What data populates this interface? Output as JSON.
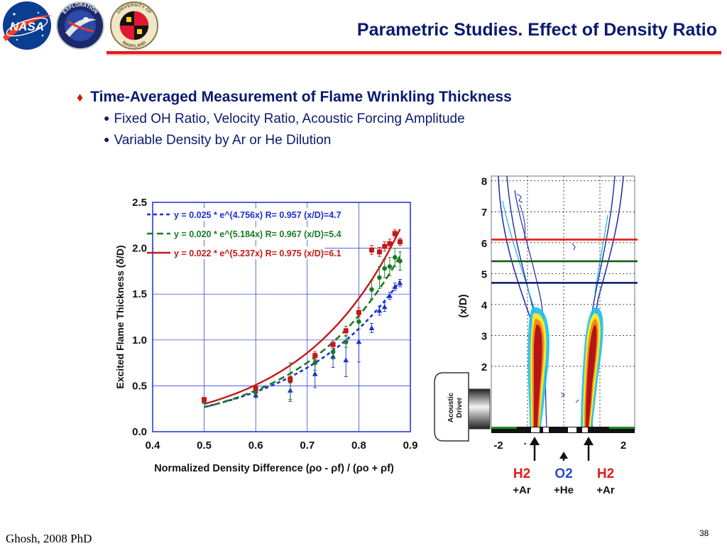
{
  "slide": {
    "title": "Parametric Studies. Effect of Density Ratio",
    "bullet_main": "Time-Averaged Measurement of Flame Wrinkling Thickness",
    "bullet_subs": [
      "Fixed OH Ratio, Velocity Ratio, Acoustic Forcing Amplitude",
      "Variable Density by Ar or He Dilution"
    ],
    "footer_source": "Ghosh, 2008 PhD",
    "page_number": "38",
    "colors": {
      "title": "#0a1a6e",
      "rule": "#e11b1b",
      "bullet_marker": "#d01717"
    }
  },
  "logos": {
    "nasa": "NASA",
    "exploration": "EXPLORATION",
    "umd_top": "UNIVERSITY OF",
    "umd_bottom": "MARYLAND"
  },
  "chart_data": {
    "type": "scatter",
    "xlabel": "Normalized Density Difference (ρo - ρf) / (ρo + ρf)",
    "ylabel": "Excited Flame Thickness (δ/D)",
    "xlim": [
      0.4,
      0.9
    ],
    "ylim": [
      0.0,
      2.5
    ],
    "x_ticks": [
      "0.4",
      "0.5",
      "0.6",
      "0.7",
      "0.8",
      "0.9"
    ],
    "y_ticks": [
      "0.0",
      "0.5",
      "1.0",
      "1.5",
      "2.0",
      "2.5"
    ],
    "grid": true,
    "legend_position": "top-left",
    "series": [
      {
        "legend": "y = 0.025 * e^(4.756x) R= 0.957 (x/D)=4.7",
        "color": "#1c2fd0",
        "marker": "triangle",
        "line": "dashed",
        "fit": {
          "a": 0.025,
          "b": 4.756
        },
        "points": [
          {
            "x": 0.5,
            "y": 0.33,
            "err": 0.0
          },
          {
            "x": 0.6,
            "y": 0.4,
            "err": 0.03
          },
          {
            "x": 0.667,
            "y": 0.45,
            "err": 0.12
          },
          {
            "x": 0.715,
            "y": 0.63,
            "err": 0.15
          },
          {
            "x": 0.75,
            "y": 0.82,
            "err": 0.12
          },
          {
            "x": 0.775,
            "y": 0.78,
            "err": 0.18
          },
          {
            "x": 0.8,
            "y": 0.98,
            "err": 0.22
          },
          {
            "x": 0.825,
            "y": 1.13,
            "err": 0.05
          },
          {
            "x": 0.84,
            "y": 1.32,
            "err": 0.05
          },
          {
            "x": 0.85,
            "y": 1.36,
            "err": 0.05
          },
          {
            "x": 0.86,
            "y": 1.48,
            "err": 0.04
          },
          {
            "x": 0.87,
            "y": 1.58,
            "err": 0.04
          },
          {
            "x": 0.88,
            "y": 1.62,
            "err": 0.04
          }
        ]
      },
      {
        "legend": "y = 0.020 * e^(5.184x) R= 0.967 (x/D)=5.4",
        "color": "#1a7a22",
        "marker": "circle",
        "line": "dashed",
        "fit": {
          "a": 0.02,
          "b": 5.184
        },
        "points": [
          {
            "x": 0.5,
            "y": 0.33,
            "err": 0.0
          },
          {
            "x": 0.6,
            "y": 0.43,
            "err": 0.03
          },
          {
            "x": 0.667,
            "y": 0.55,
            "err": 0.2
          },
          {
            "x": 0.715,
            "y": 0.75,
            "err": 0.08
          },
          {
            "x": 0.75,
            "y": 0.87,
            "err": 0.08
          },
          {
            "x": 0.775,
            "y": 0.98,
            "err": 0.06
          },
          {
            "x": 0.8,
            "y": 1.2,
            "err": 0.08
          },
          {
            "x": 0.825,
            "y": 1.55,
            "err": 0.1
          },
          {
            "x": 0.84,
            "y": 1.68,
            "err": 0.12
          },
          {
            "x": 0.85,
            "y": 1.78,
            "err": 0.1
          },
          {
            "x": 0.86,
            "y": 1.8,
            "err": 0.1
          },
          {
            "x": 0.87,
            "y": 1.9,
            "err": 0.1
          },
          {
            "x": 0.88,
            "y": 1.86,
            "err": 0.1
          }
        ]
      },
      {
        "legend": "y = 0.022 * e^(5.237x) R= 0.975 (x/D)=6.1",
        "color": "#c41818",
        "marker": "square",
        "line": "solid",
        "fit": {
          "a": 0.022,
          "b": 5.237
        },
        "points": [
          {
            "x": 0.5,
            "y": 0.35,
            "err": 0.0
          },
          {
            "x": 0.6,
            "y": 0.47,
            "err": 0.02
          },
          {
            "x": 0.667,
            "y": 0.57,
            "err": 0.03
          },
          {
            "x": 0.715,
            "y": 0.83,
            "err": 0.04
          },
          {
            "x": 0.75,
            "y": 0.95,
            "err": 0.04
          },
          {
            "x": 0.775,
            "y": 1.1,
            "err": 0.05
          },
          {
            "x": 0.8,
            "y": 1.3,
            "err": 0.05
          },
          {
            "x": 0.825,
            "y": 1.98,
            "err": 0.05
          },
          {
            "x": 0.84,
            "y": 1.96,
            "err": 0.05
          },
          {
            "x": 0.85,
            "y": 2.02,
            "err": 0.05
          },
          {
            "x": 0.86,
            "y": 2.05,
            "err": 0.05
          },
          {
            "x": 0.87,
            "y": 2.16,
            "err": 0.04
          },
          {
            "x": 0.88,
            "y": 2.07,
            "err": 0.04
          }
        ]
      }
    ]
  },
  "flame_image": {
    "y_label": "(x/D)",
    "y_ticks": [
      "2",
      "3",
      "4",
      "5",
      "6",
      "7",
      "8"
    ],
    "x_ticks": [
      "-2",
      "2"
    ],
    "x_center_tick": "·",
    "reference_lines": [
      {
        "x_over_d": 6.1,
        "color": "#e11b1b"
      },
      {
        "x_over_d": 5.4,
        "color": "#1a5a1a"
      },
      {
        "x_over_d": 4.7,
        "color": "#0a1a6e"
      }
    ],
    "acoustic_driver": "Acoustic Driver",
    "inlets": [
      {
        "label": "H2",
        "sub": "+Ar",
        "color": "#e11b1b"
      },
      {
        "label": "O2",
        "sub": "+He",
        "color": "#2a4ad0"
      },
      {
        "label": "H2",
        "sub": "+Ar",
        "color": "#e11b1b"
      }
    ]
  }
}
